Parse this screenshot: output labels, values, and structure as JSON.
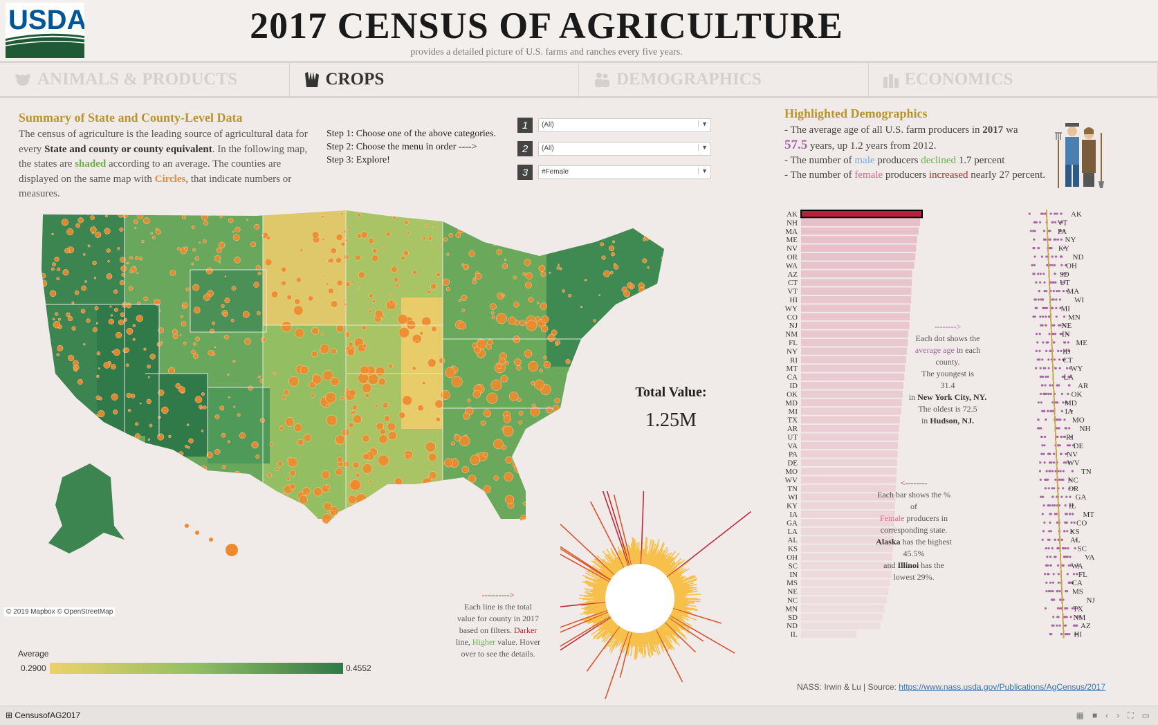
{
  "header": {
    "title": "2017 CENSUS OF AGRICULTURE",
    "subtitle": "provides a detailed picture of U.S. farms and ranches every five years.",
    "logo_text": "USDA"
  },
  "nav": {
    "tabs": [
      {
        "label": "ANIMALS & PRODUCTS",
        "icon": "cow-icon",
        "active": false
      },
      {
        "label": "CROPS",
        "icon": "hands-icon",
        "active": true
      },
      {
        "label": "DEMOGRAPHICS",
        "icon": "people-icon",
        "active": false
      },
      {
        "label": "ECONOMICS",
        "icon": "factory-icon",
        "active": false
      }
    ]
  },
  "summary": {
    "title": "Summary of State and County-Level Data",
    "p1": "The census of agriculture is the leading source of agricultural data for every ",
    "p1_bold": "State and county or county equivalent",
    "p2": ". In the following map, the states are ",
    "shaded": "shaded",
    "p3": " according to an average. The counties are displayed on the same map with ",
    "circles": "Circles",
    "p4": ", that indicate numbers or measures."
  },
  "steps": [
    "Step 1: Choose one of the above categories.",
    "Step 2: Choose the menu in order ---->",
    "Step 3: Explore!"
  ],
  "filters": [
    {
      "num": "1",
      "value": "(All)"
    },
    {
      "num": "2",
      "value": "(All)"
    },
    {
      "num": "3",
      "value": "#Female"
    }
  ],
  "map": {
    "attribution": "© 2019 Mapbox © OpenStreetMap",
    "legend_title": "Average",
    "legend_min": "0.2900",
    "legend_max": "0.4552",
    "colors": {
      "low": "#ecd26a",
      "mid": "#92be62",
      "high": "#2e7a47",
      "circle": "#ee8a2b"
    }
  },
  "total": {
    "label": "Total Value:",
    "value": "1.25M"
  },
  "radial_note": {
    "arrow": "---------->",
    "l1": "Each line is the total",
    "l2": "value for county in 2017",
    "l3": "based on filters. ",
    "darker": "Darker",
    "l4": "line, ",
    "higher": "Higher",
    "l5": " value. Hover",
    "l6": "over to see the details."
  },
  "demographics": {
    "title": "Highlighted Demographics",
    "l1a": "- The average age of all U.S. farm producers in ",
    "l1b": "2017",
    "l1c": " wa",
    "age": "57.5",
    "l2": " years, up 1.2 years from 2012.",
    "l3a": "- The number of ",
    "male": "male",
    "l3b": " producers ",
    "declined": "declined",
    "l3c": " 1.7 percent",
    "l4a": "- The number of ",
    "female": "female",
    "l4b": " producers ",
    "increased": "increased",
    "l4c": " nearly 27 percent."
  },
  "dot_note": {
    "arrow": "-------->",
    "l1": "Each dot shows the",
    "avg": "average age",
    "l2": " in each",
    "l3": "county.",
    "l4": "The youngest is",
    "l5": "31.4",
    "l6": "in ",
    "l6b": "New York City, NY.",
    "l7": "The oldest is 72.5",
    "l8": "in ",
    "l8b": "Hudson, NJ."
  },
  "bar_note": {
    "arrow": "<--------",
    "l1": "Each bar shows the %",
    "l2": "of",
    "female": "Female",
    "l3": " producers in",
    "l4": "corresponding state.",
    "l5b": "Alaska",
    "l5": " has the highest",
    "l6": "45.5%",
    "l7": "and ",
    "l7b": "Illinoi",
    "l7c": " has the",
    "l8": "lowest 29%."
  },
  "chart_data": [
    {
      "type": "bar",
      "categories": [
        "AK",
        "NH",
        "MA",
        "ME",
        "NV",
        "OR",
        "WA",
        "AZ",
        "CT",
        "VT",
        "HI",
        "WY",
        "CO",
        "NJ",
        "NM",
        "FL",
        "NY",
        "RI",
        "MT",
        "CA",
        "ID",
        "OK",
        "MD",
        "MI",
        "TX",
        "AR",
        "UT",
        "VA",
        "PA",
        "DE",
        "MO",
        "WV",
        "TN",
        "WI",
        "KY",
        "IA",
        "GA",
        "LA",
        "AL",
        "KS",
        "OH",
        "SC",
        "IN",
        "MS",
        "NE",
        "NC",
        "MN",
        "SD",
        "ND",
        "IL"
      ],
      "values": [
        45.5,
        45.0,
        44.6,
        44.2,
        44.0,
        43.8,
        43.5,
        43.0,
        42.9,
        42.8,
        42.7,
        42.5,
        42.4,
        42.3,
        42.0,
        41.9,
        41.7,
        41.5,
        41.2,
        41.0,
        40.8,
        40.6,
        40.4,
        40.2,
        39.9,
        39.7,
        39.5,
        39.4,
        39.3,
        39.2,
        39.1,
        39.0,
        38.9,
        38.8,
        38.7,
        38.6,
        38.5,
        38.4,
        38.3,
        38.2,
        38.0,
        37.9,
        37.8,
        37.4,
        37.0,
        36.6,
        36.0,
        35.5,
        35.0,
        29.0
      ],
      "title": "",
      "xlabel": "",
      "ylabel": "",
      "color_max": "#b5213f"
    },
    {
      "type": "scatter",
      "categories": [
        "AK",
        "VT",
        "PA",
        "NY",
        "KY",
        "ND",
        "OH",
        "SD",
        "UT",
        "MA",
        "WI",
        "MI",
        "MN",
        "NE",
        "IN",
        "ME",
        "ID",
        "CT",
        "WY",
        "LA",
        "AR",
        "OK",
        "MD",
        "IA",
        "MO",
        "NH",
        "RI",
        "DE",
        "NV",
        "WV",
        "TN",
        "NC",
        "OR",
        "GA",
        "IL",
        "MT",
        "CO",
        "KS",
        "AL",
        "SC",
        "VA",
        "WA",
        "FL",
        "CA",
        "MS",
        "NJ",
        "TX",
        "NM",
        "AZ",
        "HI"
      ],
      "title": "",
      "xlabel": "",
      "ylabel": ""
    }
  ],
  "footer": {
    "source_prefix": "NASS: Irwin & Lu | Source: ",
    "source_link": "https://www.nass.usda.gov/Publications/AgCensus/2017"
  },
  "bottom": {
    "tab_name": "CensusofAG2017"
  }
}
